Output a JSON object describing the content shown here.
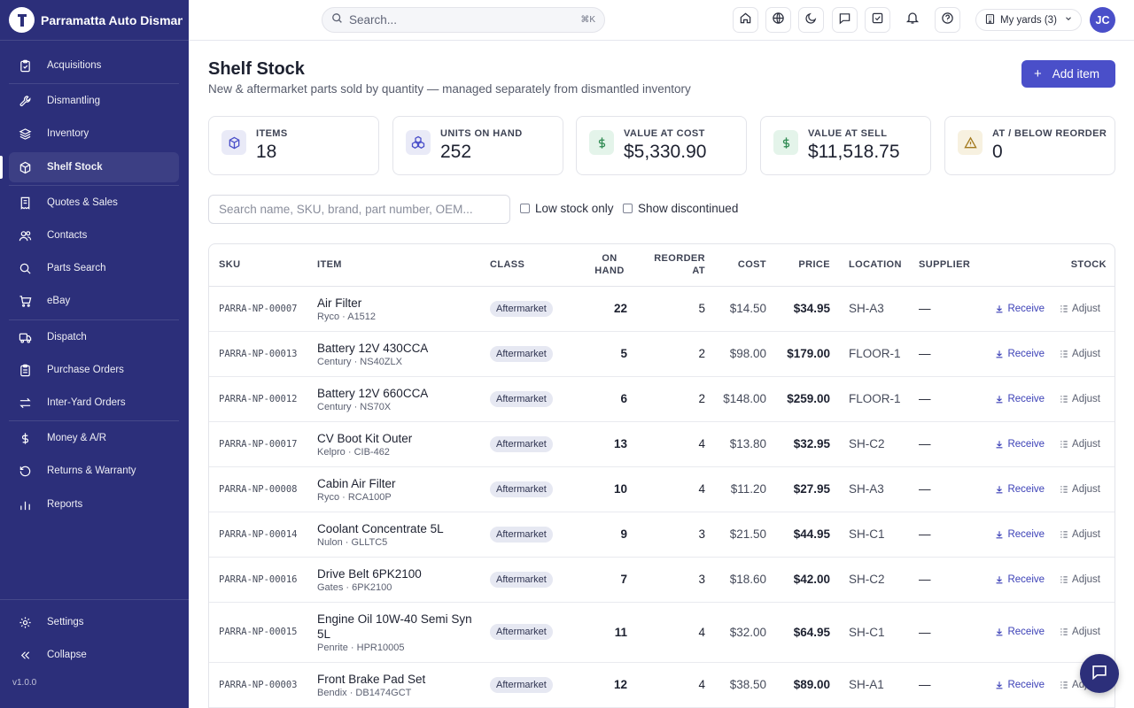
{
  "app": {
    "brand_name": "Parramatta Auto Dismantlers",
    "version": "v1.0.0"
  },
  "sidebar": {
    "items": [
      {
        "label": "Acquisitions",
        "icon": "clipboard-icon"
      },
      {
        "label": "Dismantling",
        "icon": "wrench-icon"
      },
      {
        "label": "Inventory",
        "icon": "layers-icon"
      },
      {
        "label": "Shelf Stock",
        "icon": "box-icon",
        "active": true
      },
      {
        "label": "Quotes & Sales",
        "icon": "receipt-icon"
      },
      {
        "label": "Contacts",
        "icon": "users-icon"
      },
      {
        "label": "Parts Search",
        "icon": "search-icon"
      },
      {
        "label": "eBay",
        "icon": "cart-icon"
      },
      {
        "label": "Dispatch",
        "icon": "truck-icon"
      },
      {
        "label": "Purchase Orders",
        "icon": "clipboard-list-icon"
      },
      {
        "label": "Inter-Yard Orders",
        "icon": "arrows-icon"
      },
      {
        "label": "Money & A/R",
        "icon": "dollar-icon"
      },
      {
        "label": "Returns & Warranty",
        "icon": "rotate-icon"
      },
      {
        "label": "Reports",
        "icon": "bar-chart-icon"
      }
    ],
    "settings_label": "Settings",
    "collapse_label": "Collapse"
  },
  "topbar": {
    "search_placeholder": "Search...",
    "search_shortcut": "⌘K",
    "yards_label": "My yards (3)",
    "avatar_initials": "JC"
  },
  "page": {
    "title": "Shelf Stock",
    "subtitle": "New & aftermarket parts sold by quantity — managed separately from dismantled inventory",
    "add_button_label": "Add item"
  },
  "stats": [
    {
      "label": "ITEMS",
      "value": "18",
      "icon": "box-icon",
      "bg": "#e9eaf7",
      "fg": "#4a4fc9"
    },
    {
      "label": "UNITS ON HAND",
      "value": "252",
      "icon": "stack-icon",
      "bg": "#e9eaf7",
      "fg": "#4a4fc9"
    },
    {
      "label": "VALUE AT COST",
      "value": "$5,330.90",
      "icon": "dollar-icon",
      "bg": "#e4f4ea",
      "fg": "#2f8a52"
    },
    {
      "label": "VALUE AT SELL",
      "value": "$11,518.75",
      "icon": "dollar-icon",
      "bg": "#e4f4ea",
      "fg": "#2f8a52"
    },
    {
      "label": "AT / BELOW REORDER",
      "value": "0",
      "icon": "warning-icon",
      "bg": "#f7f1e0",
      "fg": "#a37a1f"
    }
  ],
  "filters": {
    "search_placeholder": "Search name, SKU, brand, part number, OEM...",
    "low_stock_label": "Low stock only",
    "discontinued_label": "Show discontinued"
  },
  "table": {
    "headers": {
      "sku": "SKU",
      "item": "ITEM",
      "class": "CLASS",
      "on_hand": "ON HAND",
      "reorder_at": "REORDER AT",
      "cost": "COST",
      "price": "PRICE",
      "location": "LOCATION",
      "supplier": "SUPPLIER",
      "stock": "STOCK"
    },
    "receive_label": "Receive",
    "adjust_label": "Adjust",
    "rows": [
      {
        "sku": "PARRA-NP-00007",
        "name": "Air Filter",
        "meta": "Ryco · A1512",
        "class": "Aftermarket",
        "on_hand": "22",
        "reorder_at": "5",
        "cost": "$14.50",
        "price": "$34.95",
        "location": "SH-A3",
        "supplier": "—"
      },
      {
        "sku": "PARRA-NP-00013",
        "name": "Battery 12V 430CCA",
        "meta": "Century · NS40ZLX",
        "class": "Aftermarket",
        "on_hand": "5",
        "reorder_at": "2",
        "cost": "$98.00",
        "price": "$179.00",
        "location": "FLOOR-1",
        "supplier": "—"
      },
      {
        "sku": "PARRA-NP-00012",
        "name": "Battery 12V 660CCA",
        "meta": "Century · NS70X",
        "class": "Aftermarket",
        "on_hand": "6",
        "reorder_at": "2",
        "cost": "$148.00",
        "price": "$259.00",
        "location": "FLOOR-1",
        "supplier": "—"
      },
      {
        "sku": "PARRA-NP-00017",
        "name": "CV Boot Kit Outer",
        "meta": "Kelpro · CIB-462",
        "class": "Aftermarket",
        "on_hand": "13",
        "reorder_at": "4",
        "cost": "$13.80",
        "price": "$32.95",
        "location": "SH-C2",
        "supplier": "—"
      },
      {
        "sku": "PARRA-NP-00008",
        "name": "Cabin Air Filter",
        "meta": "Ryco · RCA100P",
        "class": "Aftermarket",
        "on_hand": "10",
        "reorder_at": "4",
        "cost": "$11.20",
        "price": "$27.95",
        "location": "SH-A3",
        "supplier": "—"
      },
      {
        "sku": "PARRA-NP-00014",
        "name": "Coolant Concentrate 5L",
        "meta": "Nulon · GLLTC5",
        "class": "Aftermarket",
        "on_hand": "9",
        "reorder_at": "3",
        "cost": "$21.50",
        "price": "$44.95",
        "location": "SH-C1",
        "supplier": "—"
      },
      {
        "sku": "PARRA-NP-00016",
        "name": "Drive Belt 6PK2100",
        "meta": "Gates · 6PK2100",
        "class": "Aftermarket",
        "on_hand": "7",
        "reorder_at": "3",
        "cost": "$18.60",
        "price": "$42.00",
        "location": "SH-C2",
        "supplier": "—"
      },
      {
        "sku": "PARRA-NP-00015",
        "name": "Engine Oil 10W-40 Semi Syn 5L",
        "meta": "Penrite · HPR10005",
        "class": "Aftermarket",
        "on_hand": "11",
        "reorder_at": "4",
        "cost": "$32.00",
        "price": "$64.95",
        "location": "SH-C1",
        "supplier": "—"
      },
      {
        "sku": "PARRA-NP-00003",
        "name": "Front Brake Pad Set",
        "meta": "Bendix · DB1474GCT",
        "class": "Aftermarket",
        "on_hand": "12",
        "reorder_at": "4",
        "cost": "$38.50",
        "price": "$89.00",
        "location": "SH-A1",
        "supplier": "—"
      }
    ]
  }
}
